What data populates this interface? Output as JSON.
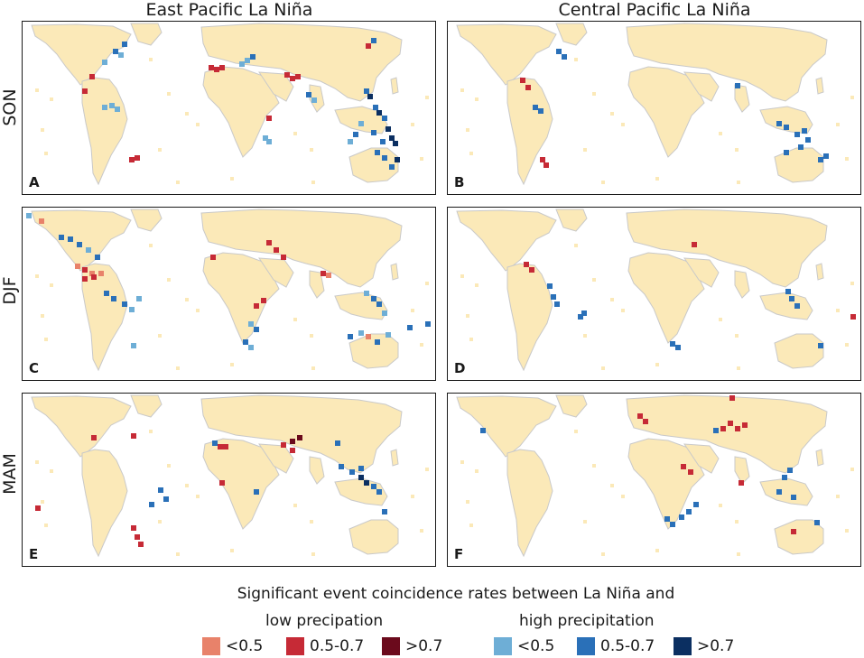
{
  "column_titles": [
    "East Pacific La Niña",
    "Central Pacific La Niña"
  ],
  "row_labels": [
    "SON",
    "DJF",
    "MAM"
  ],
  "panels": [
    {
      "letter": "A",
      "column": "East Pacific La Niña",
      "season": "SON"
    },
    {
      "letter": "B",
      "column": "Central Pacific La Niña",
      "season": "SON"
    },
    {
      "letter": "C",
      "column": "East Pacific La Niña",
      "season": "DJF"
    },
    {
      "letter": "D",
      "column": "Central Pacific La Niña",
      "season": "DJF"
    },
    {
      "letter": "E",
      "column": "East Pacific La Niña",
      "season": "MAM"
    },
    {
      "letter": "F",
      "column": "Central Pacific La Niña",
      "season": "MAM"
    }
  ],
  "legend": {
    "title": "Significant event coincidence rates between La Niña and",
    "low": {
      "title": "low precipation",
      "items": [
        {
          "label": "<0.5",
          "color": "#e8826a"
        },
        {
          "label": "0.5-0.7",
          "color": "#c62a36"
        },
        {
          "label": ">0.7",
          "color": "#6b0a1c"
        }
      ]
    },
    "high": {
      "title": "high precipitation",
      "items": [
        {
          "label": "<0.5",
          "color": "#6eaed6"
        },
        {
          "label": "0.5-0.7",
          "color": "#2a70b8"
        },
        {
          "label": ">0.7",
          "color": "#0b2f61"
        }
      ]
    }
  },
  "colors": {
    "land": "#fbe9b8",
    "coast": "#c9c9c9",
    "low_lt05": "#e8826a",
    "low_05_07": "#c62a36",
    "low_gt07": "#6b0a1c",
    "high_lt05": "#6eaed6",
    "high_05_07": "#2a70b8",
    "high_gt07": "#0b2f61"
  }
}
